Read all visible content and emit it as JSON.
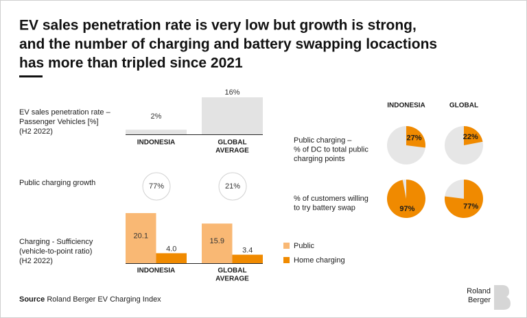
{
  "title": [
    "EV sales penetration rate is very low but growth is strong,",
    "and the number of charging and battery swapping locactions",
    "has more than tripled since 2021"
  ],
  "chart_data": [
    {
      "type": "bar",
      "label": [
        "EV sales penetration rate –",
        "Passenger Vehicles [%]",
        "(H2 2022)"
      ],
      "categories": [
        [
          "INDONESIA"
        ],
        [
          "GLOBAL",
          "AVERAGE"
        ]
      ],
      "values": [
        2,
        16
      ],
      "value_labels": [
        "2%",
        "16%"
      ],
      "color": "#e3e3e3",
      "ylim": [
        0,
        16
      ]
    },
    {
      "type": "circle_label",
      "label": [
        "Public charging growth"
      ],
      "values": [
        77,
        21
      ],
      "value_labels": [
        "77%",
        "21%"
      ]
    },
    {
      "type": "grouped_bar",
      "label": [
        "Charging - Sufficiency",
        "(vehicle-to-point ratio)",
        "(H2 2022)"
      ],
      "categories": [
        [
          "INDONESIA"
        ],
        [
          "GLOBAL",
          "AVERAGE"
        ]
      ],
      "ylim": [
        0,
        22
      ],
      "series": [
        {
          "name": "Public",
          "color": "#f9b874",
          "values": [
            20.1,
            15.9
          ]
        },
        {
          "name": "Home charging",
          "color": "#f08a00",
          "values": [
            4.0,
            3.4
          ],
          "value_labels": [
            "4.0",
            "3.4"
          ]
        }
      ]
    },
    {
      "type": "pie",
      "categories": [
        "INDONESIA",
        "GLOBAL"
      ],
      "color": "#f08a00",
      "rest_color": "#e6e6e6",
      "series": [
        {
          "name": [
            "Public charging –",
            "% of DC to total public",
            "charging points"
          ],
          "values": [
            27,
            22
          ],
          "value_labels": [
            "27%",
            "22%"
          ]
        },
        {
          "name": [
            "% of customers willing",
            "to try battery swap"
          ],
          "values": [
            97,
            77
          ],
          "value_labels": [
            "97%",
            "77%"
          ]
        }
      ]
    }
  ],
  "source_label": "Source",
  "source": "Roland Berger EV Charging Index",
  "brand": [
    "Roland",
    "Berger"
  ]
}
